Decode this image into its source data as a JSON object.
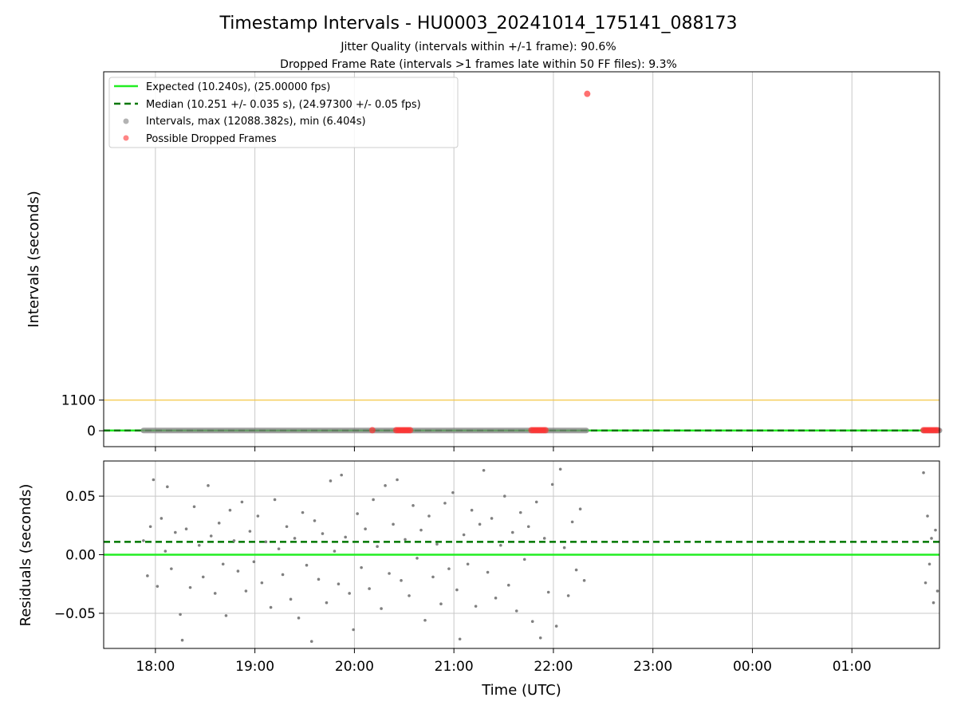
{
  "figure": {
    "title": "Timestamp Intervals - HU0003_20241014_175141_088173",
    "subtitle_1": "Jitter Quality (intervals within +/-1 frame): 90.6%",
    "subtitle_2": "Dropped Frame Rate (intervals >1 frames late within 50 FF files): 9.3%"
  },
  "colors": {
    "expected": "#22ee22",
    "median": "#007700",
    "intervals": "#808080",
    "dropped": "#ff3333",
    "threshold": "#f5c542",
    "grid": "#c8c8c8"
  },
  "chart_data": [
    {
      "type": "scatter",
      "name": "intervals",
      "xlabel": "",
      "ylabel": "Intervals (seconds)",
      "x_axis": "Time (UTC), hours since 00:00 on 2024-10-14 (values > 24 are after midnight)",
      "xlim": [
        17.48,
        25.88
      ],
      "ylim": [
        -570,
        12880
      ],
      "yticks": [
        0,
        1100
      ],
      "ytick_labels": [
        "0",
        "1100"
      ],
      "grid": "vertical",
      "threshold_line": 1100,
      "legend_position": "upper-left",
      "legend": [
        "Expected (10.240s), (25.00000 fps)",
        "Median (10.251 +/- 0.035 s), (24.97300 +/- 0.05 fps)",
        "Intervals, max (12088.382s), min (6.404s)",
        "Possible Dropped Frames"
      ],
      "expected_interval": 10.24,
      "median_interval": 10.251,
      "intervals_band": [
        {
          "x_start": 17.88,
          "x_end": 22.33,
          "approx_value": 10.25
        },
        {
          "x_start": 25.72,
          "x_end": 25.88,
          "approx_value": 10.25
        }
      ],
      "dropped_frames": [
        {
          "x": 20.18,
          "y": 20.5
        },
        {
          "x": 20.42,
          "y": 20.5
        },
        {
          "x": 20.44,
          "y": 20.5
        },
        {
          "x": 20.46,
          "y": 20.5
        },
        {
          "x": 20.48,
          "y": 20.5
        },
        {
          "x": 20.5,
          "y": 20.5
        },
        {
          "x": 20.52,
          "y": 20.5
        },
        {
          "x": 20.54,
          "y": 20.5
        },
        {
          "x": 20.56,
          "y": 20.5
        },
        {
          "x": 21.78,
          "y": 20.5
        },
        {
          "x": 21.8,
          "y": 20.5
        },
        {
          "x": 21.82,
          "y": 20.5
        },
        {
          "x": 21.84,
          "y": 20.5
        },
        {
          "x": 21.86,
          "y": 20.5
        },
        {
          "x": 21.88,
          "y": 20.5
        },
        {
          "x": 21.9,
          "y": 20.5
        },
        {
          "x": 21.92,
          "y": 20.5
        },
        {
          "x": 22.34,
          "y": 12088.382
        },
        {
          "x": 25.72,
          "y": 20.5
        },
        {
          "x": 25.74,
          "y": 20.5
        },
        {
          "x": 25.76,
          "y": 20.5
        },
        {
          "x": 25.78,
          "y": 20.5
        },
        {
          "x": 25.8,
          "y": 20.5
        },
        {
          "x": 25.82,
          "y": 20.5
        },
        {
          "x": 25.84,
          "y": 20.5
        },
        {
          "x": 25.86,
          "y": 20.5
        }
      ]
    },
    {
      "type": "scatter",
      "name": "residuals",
      "xlabel": "Time (UTC)",
      "ylabel": "Residuals (seconds)",
      "xlim": [
        17.48,
        25.88
      ],
      "ylim": [
        -0.08,
        0.08
      ],
      "yticks": [
        0.05,
        0.0,
        -0.05
      ],
      "ytick_labels": [
        "0.05",
        "0.00",
        "−0.05"
      ],
      "xticks": [
        18,
        19,
        20,
        21,
        22,
        23,
        24,
        25
      ],
      "xtick_labels": [
        "18:00",
        "19:00",
        "20:00",
        "21:00",
        "22:00",
        "23:00",
        "00:00",
        "01:00"
      ],
      "grid": "both",
      "expected_residual": 0.0,
      "median_residual": 0.011,
      "residual_points": [
        {
          "x": 17.88,
          "y": 0.012
        },
        {
          "x": 17.92,
          "y": -0.018
        },
        {
          "x": 17.95,
          "y": 0.024
        },
        {
          "x": 17.98,
          "y": 0.064
        },
        {
          "x": 18.02,
          "y": -0.027
        },
        {
          "x": 18.06,
          "y": 0.031
        },
        {
          "x": 18.1,
          "y": 0.003
        },
        {
          "x": 18.12,
          "y": 0.058
        },
        {
          "x": 18.16,
          "y": -0.012
        },
        {
          "x": 18.2,
          "y": 0.019
        },
        {
          "x": 18.25,
          "y": -0.051
        },
        {
          "x": 18.27,
          "y": -0.073
        },
        {
          "x": 18.31,
          "y": 0.022
        },
        {
          "x": 18.35,
          "y": -0.028
        },
        {
          "x": 18.39,
          "y": 0.041
        },
        {
          "x": 18.44,
          "y": 0.008
        },
        {
          "x": 18.48,
          "y": -0.019
        },
        {
          "x": 18.53,
          "y": 0.059
        },
        {
          "x": 18.56,
          "y": 0.016
        },
        {
          "x": 18.6,
          "y": -0.033
        },
        {
          "x": 18.64,
          "y": 0.027
        },
        {
          "x": 18.68,
          "y": -0.008
        },
        {
          "x": 18.71,
          "y": -0.052
        },
        {
          "x": 18.75,
          "y": 0.038
        },
        {
          "x": 18.79,
          "y": 0.012
        },
        {
          "x": 18.83,
          "y": -0.014
        },
        {
          "x": 18.87,
          "y": 0.045
        },
        {
          "x": 18.91,
          "y": -0.031
        },
        {
          "x": 18.95,
          "y": 0.02
        },
        {
          "x": 18.99,
          "y": -0.006
        },
        {
          "x": 19.03,
          "y": 0.033
        },
        {
          "x": 19.07,
          "y": -0.024
        },
        {
          "x": 19.11,
          "y": 0.011
        },
        {
          "x": 19.16,
          "y": -0.045
        },
        {
          "x": 19.2,
          "y": 0.047
        },
        {
          "x": 19.24,
          "y": 0.005
        },
        {
          "x": 19.28,
          "y": -0.017
        },
        {
          "x": 19.32,
          "y": 0.024
        },
        {
          "x": 19.36,
          "y": -0.038
        },
        {
          "x": 19.4,
          "y": 0.014
        },
        {
          "x": 19.44,
          "y": -0.054
        },
        {
          "x": 19.48,
          "y": 0.036
        },
        {
          "x": 19.52,
          "y": -0.009
        },
        {
          "x": 19.57,
          "y": -0.074
        },
        {
          "x": 19.6,
          "y": 0.029
        },
        {
          "x": 19.64,
          "y": -0.021
        },
        {
          "x": 19.68,
          "y": 0.018
        },
        {
          "x": 19.72,
          "y": -0.041
        },
        {
          "x": 19.76,
          "y": 0.063
        },
        {
          "x": 19.8,
          "y": 0.003
        },
        {
          "x": 19.84,
          "y": -0.025
        },
        {
          "x": 19.87,
          "y": 0.068
        },
        {
          "x": 19.91,
          "y": 0.015
        },
        {
          "x": 19.95,
          "y": -0.033
        },
        {
          "x": 19.99,
          "y": -0.064
        },
        {
          "x": 20.03,
          "y": 0.035
        },
        {
          "x": 20.07,
          "y": -0.011
        },
        {
          "x": 20.11,
          "y": 0.022
        },
        {
          "x": 20.15,
          "y": -0.029
        },
        {
          "x": 20.19,
          "y": 0.047
        },
        {
          "x": 20.23,
          "y": 0.007
        },
        {
          "x": 20.27,
          "y": -0.046
        },
        {
          "x": 20.31,
          "y": 0.059
        },
        {
          "x": 20.35,
          "y": -0.016
        },
        {
          "x": 20.39,
          "y": 0.026
        },
        {
          "x": 20.43,
          "y": 0.064
        },
        {
          "x": 20.47,
          "y": -0.022
        },
        {
          "x": 20.51,
          "y": 0.013
        },
        {
          "x": 20.55,
          "y": -0.035
        },
        {
          "x": 20.59,
          "y": 0.042
        },
        {
          "x": 20.63,
          "y": -0.003
        },
        {
          "x": 20.67,
          "y": 0.021
        },
        {
          "x": 20.71,
          "y": -0.056
        },
        {
          "x": 20.75,
          "y": 0.033
        },
        {
          "x": 20.79,
          "y": -0.019
        },
        {
          "x": 20.83,
          "y": 0.009
        },
        {
          "x": 20.87,
          "y": -0.042
        },
        {
          "x": 20.91,
          "y": 0.044
        },
        {
          "x": 20.95,
          "y": -0.012
        },
        {
          "x": 20.99,
          "y": 0.053
        },
        {
          "x": 21.03,
          "y": -0.03
        },
        {
          "x": 21.06,
          "y": -0.072
        },
        {
          "x": 21.1,
          "y": 0.017
        },
        {
          "x": 21.14,
          "y": -0.008
        },
        {
          "x": 21.18,
          "y": 0.038
        },
        {
          "x": 21.22,
          "y": -0.044
        },
        {
          "x": 21.26,
          "y": 0.026
        },
        {
          "x": 21.3,
          "y": 0.072
        },
        {
          "x": 21.34,
          "y": -0.015
        },
        {
          "x": 21.38,
          "y": 0.031
        },
        {
          "x": 21.42,
          "y": -0.037
        },
        {
          "x": 21.47,
          "y": 0.008
        },
        {
          "x": 21.51,
          "y": 0.05
        },
        {
          "x": 21.55,
          "y": -0.026
        },
        {
          "x": 21.59,
          "y": 0.019
        },
        {
          "x": 21.63,
          "y": -0.048
        },
        {
          "x": 21.67,
          "y": 0.036
        },
        {
          "x": 21.71,
          "y": -0.004
        },
        {
          "x": 21.75,
          "y": 0.024
        },
        {
          "x": 21.79,
          "y": -0.057
        },
        {
          "x": 21.83,
          "y": 0.045
        },
        {
          "x": 21.87,
          "y": -0.071
        },
        {
          "x": 21.91,
          "y": 0.014
        },
        {
          "x": 21.95,
          "y": -0.032
        },
        {
          "x": 21.99,
          "y": 0.06
        },
        {
          "x": 22.03,
          "y": -0.061
        },
        {
          "x": 22.07,
          "y": 0.073
        },
        {
          "x": 22.11,
          "y": 0.006
        },
        {
          "x": 22.15,
          "y": -0.035
        },
        {
          "x": 22.19,
          "y": 0.028
        },
        {
          "x": 22.23,
          "y": -0.013
        },
        {
          "x": 22.27,
          "y": 0.039
        },
        {
          "x": 22.31,
          "y": -0.022
        },
        {
          "x": 25.72,
          "y": 0.07
        },
        {
          "x": 25.74,
          "y": -0.024
        },
        {
          "x": 25.76,
          "y": 0.033
        },
        {
          "x": 25.78,
          "y": -0.008
        },
        {
          "x": 25.8,
          "y": 0.014
        },
        {
          "x": 25.82,
          "y": -0.041
        },
        {
          "x": 25.84,
          "y": 0.021
        },
        {
          "x": 25.86,
          "y": -0.031
        }
      ]
    }
  ]
}
